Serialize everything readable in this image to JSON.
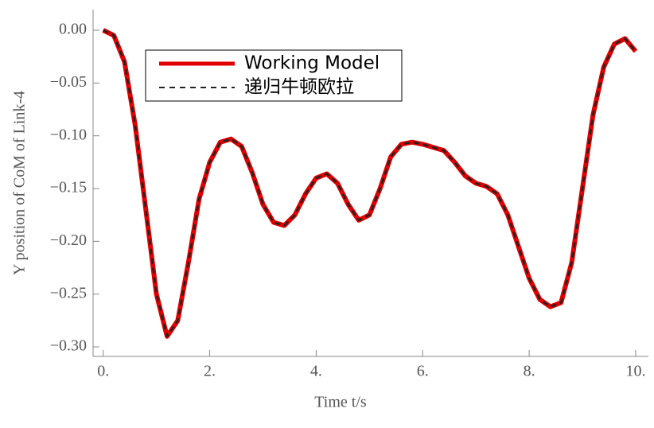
{
  "chart_data": {
    "type": "line",
    "xlabel": "Time  t/s",
    "ylabel": "Y position of CoM of Link-4",
    "x": [
      0,
      0.2,
      0.4,
      0.6,
      0.8,
      1.0,
      1.2,
      1.4,
      1.6,
      1.8,
      2.0,
      2.2,
      2.4,
      2.6,
      2.8,
      3.0,
      3.2,
      3.4,
      3.6,
      3.8,
      4.0,
      4.2,
      4.4,
      4.6,
      4.8,
      5.0,
      5.2,
      5.4,
      5.6,
      5.8,
      6.0,
      6.2,
      6.4,
      6.6,
      6.8,
      7.0,
      7.2,
      7.4,
      7.6,
      7.8,
      8.0,
      8.2,
      8.4,
      8.6,
      8.8,
      9.0,
      9.2,
      9.4,
      9.6,
      9.8,
      10.0
    ],
    "series": [
      {
        "name": "Working Model",
        "color": "#e00000",
        "style": "solid",
        "values": [
          0,
          -0.005,
          -0.03,
          -0.09,
          -0.17,
          -0.25,
          -0.29,
          -0.275,
          -0.22,
          -0.16,
          -0.125,
          -0.106,
          -0.103,
          -0.11,
          -0.135,
          -0.165,
          -0.182,
          -0.185,
          -0.175,
          -0.155,
          -0.14,
          -0.136,
          -0.145,
          -0.165,
          -0.18,
          -0.175,
          -0.15,
          -0.12,
          -0.108,
          -0.106,
          -0.108,
          -0.111,
          -0.114,
          -0.125,
          -0.138,
          -0.145,
          -0.148,
          -0.155,
          -0.175,
          -0.205,
          -0.235,
          -0.255,
          -0.262,
          -0.258,
          -0.22,
          -0.15,
          -0.08,
          -0.035,
          -0.013,
          -0.008,
          -0.02
        ]
      },
      {
        "name": "递归牛顿欧拉",
        "color": "#222222",
        "style": "dashed",
        "values": [
          0,
          -0.005,
          -0.03,
          -0.09,
          -0.17,
          -0.25,
          -0.29,
          -0.275,
          -0.22,
          -0.16,
          -0.125,
          -0.106,
          -0.103,
          -0.11,
          -0.135,
          -0.165,
          -0.182,
          -0.185,
          -0.175,
          -0.155,
          -0.14,
          -0.136,
          -0.145,
          -0.165,
          -0.18,
          -0.175,
          -0.15,
          -0.12,
          -0.108,
          -0.106,
          -0.108,
          -0.111,
          -0.114,
          -0.125,
          -0.138,
          -0.145,
          -0.148,
          -0.155,
          -0.175,
          -0.205,
          -0.235,
          -0.255,
          -0.262,
          -0.258,
          -0.22,
          -0.15,
          -0.08,
          -0.035,
          -0.013,
          -0.008,
          -0.02
        ]
      }
    ],
    "xlim": [
      -0.19,
      10.24
    ],
    "ylim": [
      -0.309,
      0.0196
    ],
    "xticks": [
      {
        "value": 0,
        "label": "0."
      },
      {
        "value": 2,
        "label": "2."
      },
      {
        "value": 4,
        "label": "4."
      },
      {
        "value": 6,
        "label": "6."
      },
      {
        "value": 8,
        "label": "8."
      },
      {
        "value": 10,
        "label": "10."
      }
    ],
    "yticks": [
      {
        "value": 0,
        "label": "0.00"
      },
      {
        "value": -0.05,
        "label": "−0.05"
      },
      {
        "value": -0.1,
        "label": "−0.10"
      },
      {
        "value": -0.15,
        "label": "−0.15"
      },
      {
        "value": -0.2,
        "label": "−0.20"
      },
      {
        "value": -0.25,
        "label": "−0.25"
      },
      {
        "value": -0.3,
        "label": "−0.30"
      }
    ],
    "grid": false,
    "legend": "upper left"
  }
}
